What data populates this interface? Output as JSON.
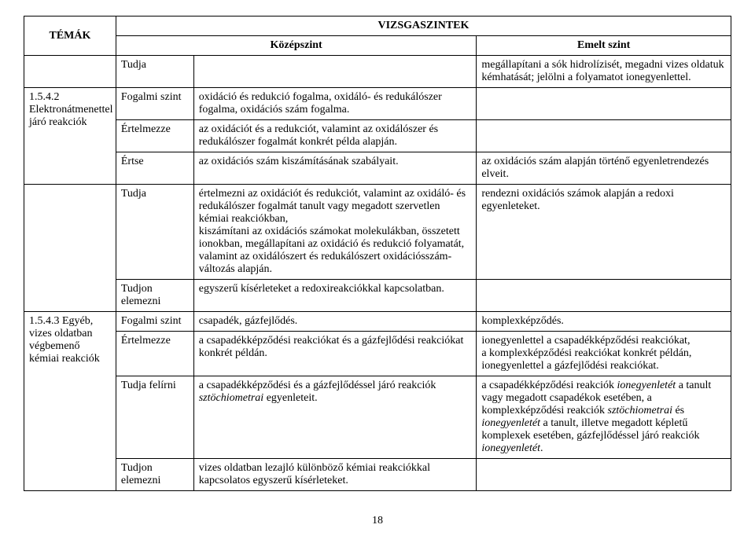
{
  "header": {
    "temak": "TÉMÁK",
    "vizsgaszintek": "VIZSGASZINTEK",
    "kozepszint": "Középszint",
    "emeltszint": "Emelt szint"
  },
  "rows": [
    {
      "temak": "",
      "label": "Tudja",
      "kozep": "",
      "emelt": "megállapítani a sók hidrolízisét, megadni vizes oldatuk kémhatását; jelölni a folyamatot ionegyenlettel."
    },
    {
      "temak": "1.5.4.2 Elektronátmenettel járó reakciók",
      "label": "Fogalmi szint",
      "kozep": "oxidáció és redukció fogalma, oxidáló- és redukálószer fogalma, oxidációs szám fogalma.",
      "emelt": ""
    },
    {
      "label": "Értelmezze",
      "kozep": "az oxidációt és a redukciót, valamint az oxidálószer és redukálószer fogalmát konkrét példa alapján.",
      "emelt": ""
    },
    {
      "label": "Értse",
      "kozep": "az oxidációs szám kiszámításának szabályait.",
      "emelt": "az oxidációs szám alapján történő egyenletrendezés elveit."
    },
    {
      "temak": "",
      "label": "Tudja",
      "kozep": "értelmezni az oxidációt és redukciót, valamint az oxidáló- és redukálószer fogalmát tanult vagy megadott szervetlen kémiai reakciókban,\nkiszámítani az oxidációs számokat molekulákban, összetett ionokban, megállapítani az oxidáció és redukció folyamatát, valamint az oxidálószert és redukálószert oxidációsszám-változás alapján.",
      "emelt": "rendezni oxidációs számok alapján a redoxi egyenleteket."
    },
    {
      "label": "Tudjon elemezni",
      "kozep": "egyszerű kísérleteket a redoxireakciókkal kapcsolatban.",
      "emelt": ""
    },
    {
      "temak": "1.5.4.3 Egyéb, vizes oldatban végbemenő kémiai reakciók",
      "label": "Fogalmi szint",
      "kozep": "csapadék, gázfejlődés.",
      "emelt": "komplexképződés."
    },
    {
      "label": "Értelmezze",
      "kozep": "a csapadékképződési reakciókat és a gázfejlődési reakciókat konkrét példán.",
      "emelt": "ionegyenlettel a csapadékképződési reakciókat,\na komplexképződési reakciókat konkrét példán,\nionegyenlettel a gázfejlődési reakciókat."
    },
    {
      "label": "Tudja felírni",
      "kozep_html": "a csapadékképződési és a gázfejlődéssel járó reakciók <i>sztöchiometrai</i> egyenleteit.",
      "emelt_html": "a csapadékképződési reakciók <i>ionegyenletét</i> a tanult vagy megadott csapadékok esetében, a komplexképződési reakciók <i>sztöchiometrai</i> és <i>ionegyenletét</i> a tanult, illetve megadott képletű komplexek esetében, gázfejlődéssel járó reakciók <i>ionegyenletét</i>."
    },
    {
      "label": "Tudjon elemezni",
      "kozep": "vizes oldatban lezajló különböző kémiai reakciókkal kapcsolatos egyszerű kísérleteket.",
      "emelt": ""
    }
  ],
  "pageNumber": "18"
}
